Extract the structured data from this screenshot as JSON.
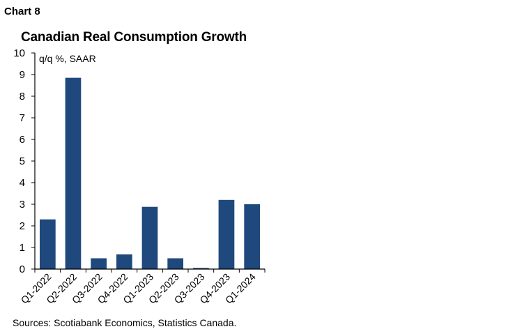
{
  "chart_label": "Chart 8",
  "source": "Sources: Scotiabank Economics, Statistics Canada.",
  "colors": {
    "bar": "#1f497d",
    "axis": "#000000"
  },
  "chart_data": {
    "type": "bar",
    "title": "Canadian Real Consumption Growth",
    "unit_label": "q/q %, SAAR",
    "categories": [
      "Q1-2022",
      "Q2-2022",
      "Q3-2022",
      "Q4-2022",
      "Q1-2023",
      "Q2-2023",
      "Q3-2023",
      "Q4-2023",
      "Q1-2024"
    ],
    "values": [
      2.3,
      8.85,
      0.5,
      0.68,
      2.88,
      0.5,
      0.05,
      3.2,
      3.0
    ],
    "ylim": [
      0,
      10
    ],
    "yticks": [
      "0",
      "1",
      "2",
      "3",
      "4",
      "5",
      "6",
      "7",
      "8",
      "9",
      "10"
    ],
    "grid": false,
    "legend": "none"
  }
}
